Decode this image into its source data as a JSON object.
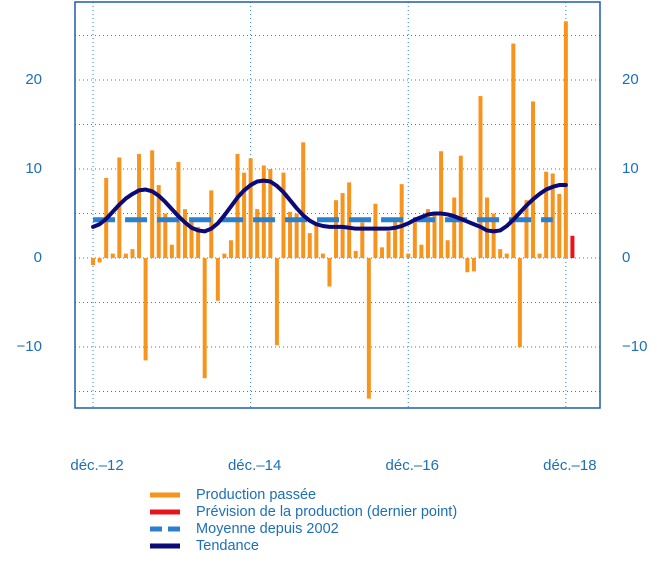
{
  "chart_data": {
    "type": "bar",
    "x": [
      0,
      1,
      2,
      3,
      4,
      5,
      6,
      7,
      8,
      9,
      10,
      11,
      12,
      13,
      14,
      15,
      16,
      17,
      18,
      19,
      20,
      21,
      22,
      23,
      24,
      25,
      26,
      27,
      28,
      29,
      30,
      31,
      32,
      33,
      34,
      35,
      36,
      37,
      38,
      39,
      40,
      41,
      42,
      43,
      44,
      45,
      46,
      47,
      48,
      49,
      50,
      51,
      52,
      53,
      54,
      55,
      56,
      57,
      58,
      59,
      60,
      61,
      62,
      63,
      64,
      65,
      66,
      67,
      68,
      69,
      70,
      71,
      72,
      73
    ],
    "xlim": [
      -2.75,
      77.2
    ],
    "xticks": [
      {
        "value": 0,
        "label": "déc.–12"
      },
      {
        "value": 24,
        "label": "déc.–14"
      },
      {
        "value": 48,
        "label": "déc.–16"
      },
      {
        "value": 72,
        "label": "déc.–18"
      }
    ],
    "ylim": [
      -16.85,
      28.77
    ],
    "yticks": [
      {
        "value": -10,
        "label": "−10"
      },
      0,
      10,
      20
    ],
    "ygrid": [
      -15,
      -10,
      -5,
      0,
      5,
      10,
      15,
      20,
      25
    ],
    "grid": true,
    "series": [
      {
        "name": "Production passée",
        "color": "#f7941d",
        "kind": "bar",
        "values": [
          -0.8,
          -0.5,
          9,
          0.5,
          11.3,
          0.5,
          1,
          11.7,
          -11.5,
          12.1,
          8.2,
          5,
          1.5,
          10.8,
          5.5,
          4.5,
          3.5,
          -13.5,
          7.6,
          -4.8,
          0.5,
          2,
          11.7,
          9.6,
          11.2,
          5.5,
          10.4,
          10,
          -9.8,
          9.6,
          5.2,
          5,
          13,
          2.8,
          4,
          0.5,
          -3.2,
          6.5,
          7.3,
          8.5,
          0.8,
          4,
          -15.8,
          6.1,
          1.2,
          3,
          4.5,
          8.3,
          0.5,
          4,
          1.5,
          5.5,
          5,
          12,
          2,
          6.8,
          11.5,
          -1.6,
          -1.5,
          18.2,
          6.8,
          5,
          1,
          0.5,
          24.1,
          -10,
          6.5,
          17.6,
          0.5,
          9.7,
          9.5,
          7.2,
          26.6,
          null
        ]
      },
      {
        "name": "Prévision de la production (dernier point)",
        "color": "#e8141b",
        "kind": "bar",
        "values": [
          null,
          null,
          null,
          null,
          null,
          null,
          null,
          null,
          null,
          null,
          null,
          null,
          null,
          null,
          null,
          null,
          null,
          null,
          null,
          null,
          null,
          null,
          null,
          null,
          null,
          null,
          null,
          null,
          null,
          null,
          null,
          null,
          null,
          null,
          null,
          null,
          null,
          null,
          null,
          null,
          null,
          null,
          null,
          null,
          null,
          null,
          null,
          null,
          null,
          null,
          null,
          null,
          null,
          null,
          null,
          null,
          null,
          null,
          null,
          null,
          null,
          null,
          null,
          null,
          null,
          null,
          null,
          null,
          null,
          null,
          null,
          null,
          null,
          2.5
        ]
      },
      {
        "name": "Moyenne depuis 2002",
        "color": "#2b7fcf",
        "kind": "dashed",
        "values": [
          4.3,
          4.3,
          4.3,
          4.3,
          4.3,
          4.3,
          4.3,
          4.3,
          4.3,
          4.3,
          4.3,
          4.3,
          4.3,
          4.3,
          4.3,
          4.3,
          4.3,
          4.3,
          4.3,
          4.3,
          4.3,
          4.3,
          4.3,
          4.3,
          4.3,
          4.3,
          4.3,
          4.3,
          4.3,
          4.3,
          4.3,
          4.3,
          4.3,
          4.3,
          4.3,
          4.3,
          4.3,
          4.3,
          4.3,
          4.3,
          4.3,
          4.3,
          4.3,
          4.3,
          4.3,
          4.3,
          4.3,
          4.3,
          4.3,
          4.3,
          4.3,
          4.3,
          4.3,
          4.3,
          4.3,
          4.3,
          4.3,
          4.3,
          4.3,
          4.3,
          4.3,
          4.3,
          4.3,
          4.3,
          4.3,
          4.3,
          4.3,
          4.3,
          4.3,
          4.3,
          4.3,
          null,
          null,
          null
        ]
      },
      {
        "name": "Tendance",
        "color": "#0a0a78",
        "kind": "line",
        "values": [
          3.5,
          3.8,
          4.4,
          5.2,
          6.0,
          6.7,
          7.2,
          7.6,
          7.7,
          7.5,
          7.0,
          6.3,
          5.5,
          4.7,
          4.0,
          3.4,
          3.1,
          3.0,
          3.3,
          3.9,
          4.8,
          5.8,
          6.8,
          7.6,
          8.2,
          8.6,
          8.7,
          8.6,
          8.1,
          7.4,
          6.5,
          5.6,
          4.8,
          4.2,
          3.8,
          3.6,
          3.5,
          3.5,
          3.5,
          3.4,
          3.3,
          3.3,
          3.3,
          3.3,
          3.3,
          3.3,
          3.4,
          3.6,
          3.9,
          4.3,
          4.6,
          4.9,
          5.0,
          5.0,
          4.9,
          4.7,
          4.4,
          4.1,
          3.8,
          3.5,
          3.1,
          3.0,
          3.1,
          3.6,
          4.3,
          5.1,
          5.9,
          6.6,
          7.2,
          7.7,
          8.0,
          8.2,
          8.2,
          null
        ]
      }
    ]
  }
}
